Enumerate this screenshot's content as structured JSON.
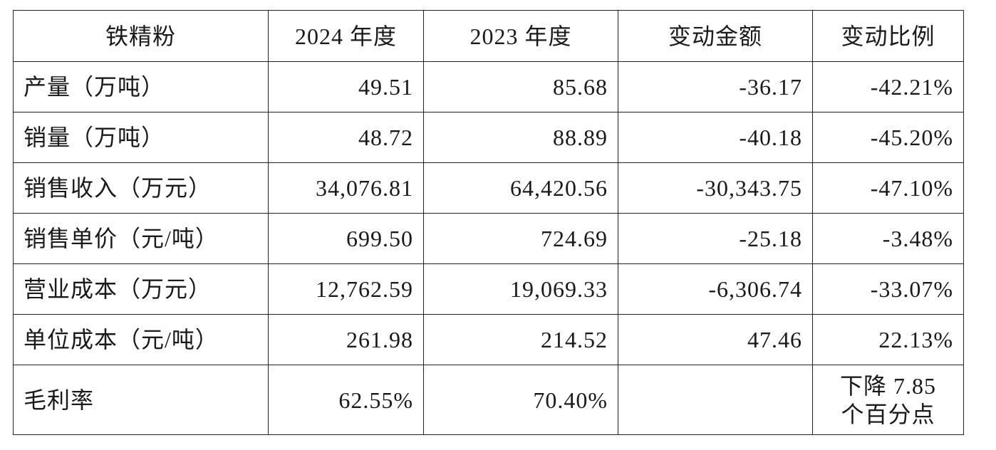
{
  "table": {
    "header": [
      "铁精粉",
      "2024 年度",
      "2023 年度",
      "变动金额",
      "变动比例"
    ],
    "rows": [
      [
        "产量（万吨）",
        "49.51",
        "85.68",
        "-36.17",
        "-42.21%"
      ],
      [
        "销量（万吨）",
        "48.72",
        "88.89",
        "-40.18",
        "-45.20%"
      ],
      [
        "销售收入（万元）",
        "34,076.81",
        "64,420.56",
        "-30,343.75",
        "-47.10%"
      ],
      [
        "销售单价（元/吨）",
        "699.50",
        "724.69",
        "-25.18",
        "-3.48%"
      ],
      [
        "营业成本（万元）",
        "12,762.59",
        "19,069.33",
        "-6,306.74",
        "-33.07%"
      ],
      [
        "单位成本（元/吨）",
        "261.98",
        "214.52",
        "47.46",
        "22.13%"
      ],
      [
        "毛利率",
        "62.55%",
        "70.40%",
        "",
        [
          "下降 7.85",
          "个百分点"
        ]
      ]
    ]
  }
}
